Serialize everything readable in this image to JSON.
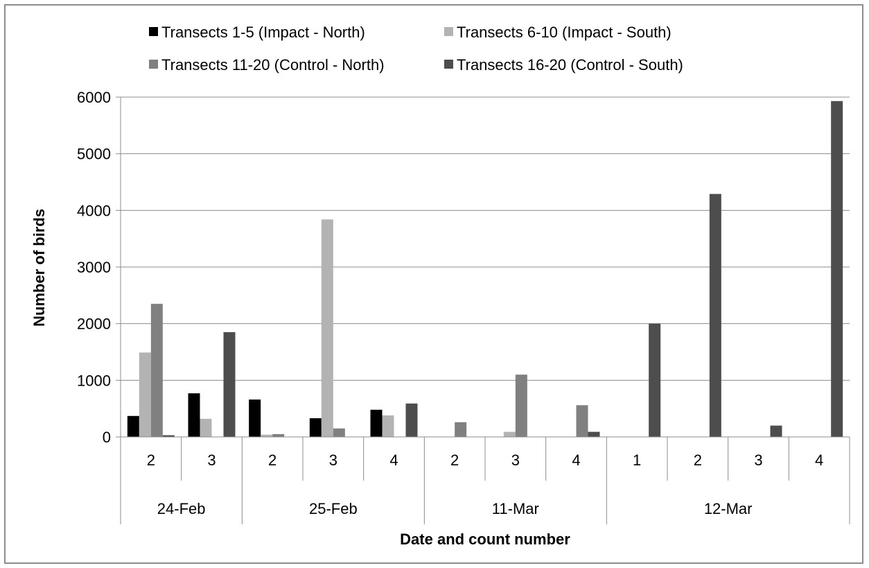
{
  "chart_data": {
    "type": "bar",
    "title": "",
    "xlabel": "Date and count number",
    "ylabel": "Number of birds",
    "ylim": [
      0,
      6000
    ],
    "yticks": [
      0,
      1000,
      2000,
      3000,
      4000,
      5000,
      6000
    ],
    "grid": true,
    "legend_position": "top",
    "groups": [
      {
        "label": "24-Feb",
        "counts": [
          "2",
          "3"
        ]
      },
      {
        "label": "25-Feb",
        "counts": [
          "2",
          "3",
          "4"
        ]
      },
      {
        "label": "11-Mar",
        "counts": [
          "2",
          "3",
          "4"
        ]
      },
      {
        "label": "12-Mar",
        "counts": [
          "1",
          "2",
          "3",
          "4"
        ]
      }
    ],
    "series": [
      {
        "name": "Transects 1-5 (Impact - North)",
        "color": "#000000",
        "values": [
          370,
          770,
          660,
          330,
          480,
          0,
          0,
          0,
          0,
          0,
          0,
          0
        ]
      },
      {
        "name": "Transects 6-10 (Impact - South)",
        "color": "#b3b3b3",
        "values": [
          1490,
          320,
          40,
          3840,
          380,
          0,
          90,
          0,
          0,
          0,
          0,
          0
        ]
      },
      {
        "name": "Transects 11-20 (Control - North)",
        "color": "#808080",
        "values": [
          2350,
          0,
          50,
          150,
          0,
          260,
          1100,
          560,
          0,
          0,
          0,
          0
        ]
      },
      {
        "name": "Transects 16-20 (Control - South)",
        "color": "#4d4d4d",
        "values": [
          30,
          1850,
          0,
          0,
          590,
          0,
          0,
          90,
          2000,
          4290,
          200,
          5930
        ]
      }
    ]
  }
}
